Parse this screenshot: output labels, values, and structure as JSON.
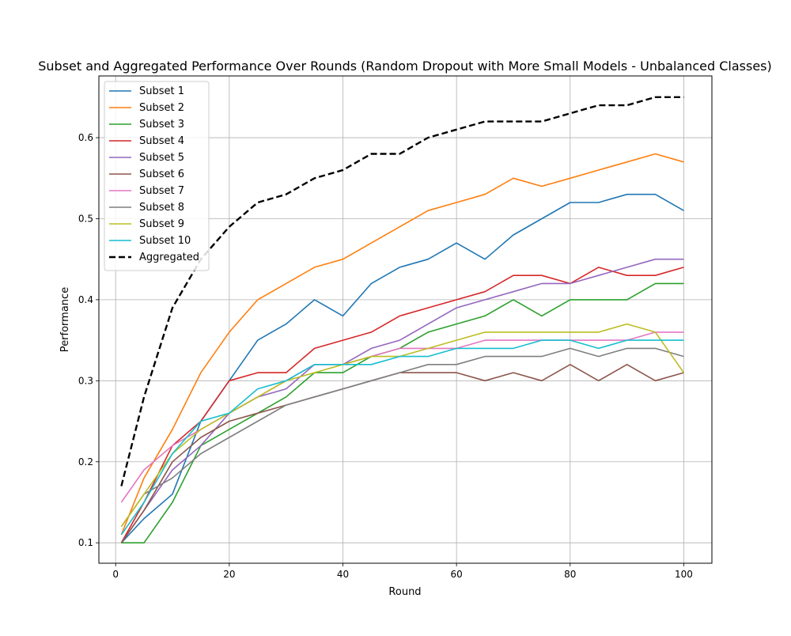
{
  "chart_data": {
    "type": "line",
    "title": "Subset and Aggregated Performance Over Rounds (Random Dropout with More Small Models - Unbalanced Classes)",
    "xlabel": "Round",
    "ylabel": "Performance",
    "xlim": [
      -2.95,
      104.95
    ],
    "ylim": [
      0.0748,
      0.6762
    ],
    "x_ticks": [
      0,
      20,
      40,
      60,
      80,
      100
    ],
    "y_ticks": [
      0.1,
      0.2,
      0.3,
      0.4,
      0.5,
      0.6
    ],
    "x_tick_labels": [
      "0",
      "20",
      "40",
      "60",
      "80",
      "100"
    ],
    "y_tick_labels": [
      "0.1",
      "0.2",
      "0.3",
      "0.4",
      "0.5",
      "0.6"
    ],
    "grid": true,
    "legend_position": "upper-left",
    "x": [
      1,
      5,
      10,
      15,
      20,
      25,
      30,
      35,
      40,
      45,
      50,
      55,
      60,
      65,
      70,
      75,
      80,
      85,
      90,
      95,
      100
    ],
    "series": [
      {
        "name": "Subset 1",
        "color": "#1f77b4",
        "dash": "solid",
        "values": [
          0.1,
          0.13,
          0.16,
          0.25,
          0.3,
          0.35,
          0.37,
          0.4,
          0.38,
          0.42,
          0.44,
          0.45,
          0.47,
          0.45,
          0.48,
          0.5,
          0.52,
          0.52,
          0.53,
          0.53,
          0.51
        ]
      },
      {
        "name": "Subset 2",
        "color": "#ff7f0e",
        "dash": "solid",
        "values": [
          0.11,
          0.18,
          0.24,
          0.31,
          0.36,
          0.4,
          0.42,
          0.44,
          0.45,
          0.47,
          0.49,
          0.51,
          0.52,
          0.53,
          0.55,
          0.54,
          0.55,
          0.56,
          0.57,
          0.58,
          0.57
        ]
      },
      {
        "name": "Subset 3",
        "color": "#2ca02c",
        "dash": "solid",
        "values": [
          0.1,
          0.1,
          0.15,
          0.22,
          0.24,
          0.26,
          0.28,
          0.31,
          0.31,
          0.33,
          0.34,
          0.36,
          0.37,
          0.38,
          0.4,
          0.38,
          0.4,
          0.4,
          0.4,
          0.42,
          0.42
        ]
      },
      {
        "name": "Subset 4",
        "color": "#d62728",
        "dash": "solid",
        "values": [
          0.1,
          0.15,
          0.22,
          0.25,
          0.3,
          0.31,
          0.31,
          0.34,
          0.35,
          0.36,
          0.38,
          0.39,
          0.4,
          0.41,
          0.43,
          0.43,
          0.42,
          0.44,
          0.43,
          0.43,
          0.44
        ]
      },
      {
        "name": "Subset 5",
        "color": "#9467bd",
        "dash": "solid",
        "values": [
          0.1,
          0.14,
          0.19,
          0.22,
          0.26,
          0.28,
          0.29,
          0.32,
          0.32,
          0.34,
          0.35,
          0.37,
          0.39,
          0.4,
          0.41,
          0.42,
          0.42,
          0.43,
          0.44,
          0.45,
          0.45
        ]
      },
      {
        "name": "Subset 6",
        "color": "#8c564b",
        "dash": "solid",
        "values": [
          0.1,
          0.14,
          0.2,
          0.23,
          0.25,
          0.26,
          0.27,
          0.28,
          0.29,
          0.3,
          0.31,
          0.31,
          0.31,
          0.3,
          0.31,
          0.3,
          0.32,
          0.3,
          0.32,
          0.3,
          0.31
        ]
      },
      {
        "name": "Subset 7",
        "color": "#e377c2",
        "dash": "solid",
        "values": [
          0.15,
          0.19,
          0.22,
          0.24,
          0.26,
          0.28,
          0.3,
          0.32,
          0.32,
          0.33,
          0.34,
          0.34,
          0.34,
          0.35,
          0.35,
          0.35,
          0.35,
          0.35,
          0.35,
          0.36,
          0.36
        ]
      },
      {
        "name": "Subset 8",
        "color": "#7f7f7f",
        "dash": "solid",
        "values": [
          0.12,
          0.16,
          0.18,
          0.21,
          0.23,
          0.25,
          0.27,
          0.28,
          0.29,
          0.3,
          0.31,
          0.32,
          0.32,
          0.33,
          0.33,
          0.33,
          0.34,
          0.33,
          0.34,
          0.34,
          0.33
        ]
      },
      {
        "name": "Subset 9",
        "color": "#bcbd22",
        "dash": "solid",
        "values": [
          0.12,
          0.16,
          0.21,
          0.24,
          0.26,
          0.28,
          0.3,
          0.31,
          0.32,
          0.33,
          0.33,
          0.34,
          0.35,
          0.36,
          0.36,
          0.36,
          0.36,
          0.36,
          0.37,
          0.36,
          0.31
        ]
      },
      {
        "name": "Subset 10",
        "color": "#17becf",
        "dash": "solid",
        "values": [
          0.11,
          0.15,
          0.21,
          0.25,
          0.26,
          0.29,
          0.3,
          0.32,
          0.32,
          0.32,
          0.33,
          0.33,
          0.34,
          0.34,
          0.34,
          0.35,
          0.35,
          0.34,
          0.35,
          0.35,
          0.35
        ]
      },
      {
        "name": "Aggregated",
        "color": "#000000",
        "dash": "dashed",
        "values": [
          0.17,
          0.28,
          0.39,
          0.45,
          0.49,
          0.52,
          0.53,
          0.55,
          0.56,
          0.58,
          0.58,
          0.6,
          0.61,
          0.62,
          0.62,
          0.62,
          0.63,
          0.64,
          0.64,
          0.65,
          0.65
        ]
      }
    ]
  }
}
